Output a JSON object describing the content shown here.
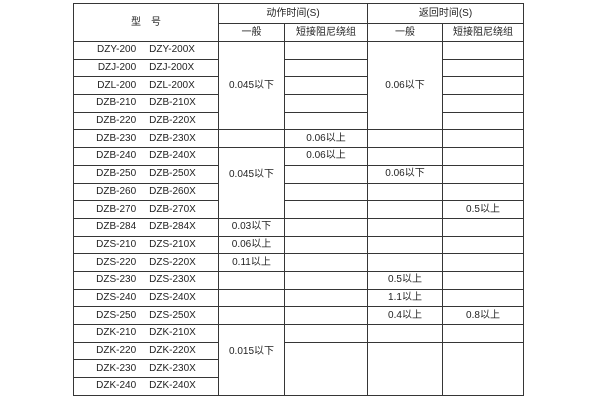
{
  "window": {
    "background": "#ffffff",
    "border_color": "#363636",
    "text_color": "#1f1f1f"
  },
  "table": {
    "header": {
      "model": "型　号",
      "action_time": "动作时间(S)",
      "return_time": "返回时间(S)",
      "action_general": "一般",
      "action_damping": "短接阻尼绕组",
      "return_general": "一般",
      "return_damping": "短接阻尼绕组"
    },
    "rows": [
      {
        "m1": "DZY-200",
        "m2": "DZY-200X",
        "ag": {
          "span": 5,
          "text": "0.045以下",
          "anchor": 2
        },
        "ad": "",
        "rg": {
          "span": 5,
          "text": "0.06以下",
          "anchor": 2
        },
        "rd": ""
      },
      {
        "m1": "DZJ-200",
        "m2": "DZJ-200X",
        "ad": "",
        "rd": ""
      },
      {
        "m1": "DZL-200",
        "m2": "DZL-200X",
        "ad": "",
        "rd": ""
      },
      {
        "m1": "DZB-210",
        "m2": "DZB-210X",
        "ad": "",
        "rd": ""
      },
      {
        "m1": "DZB-220",
        "m2": "DZB-220X",
        "ad": "",
        "rd": ""
      },
      {
        "m1": "DZB-230",
        "m2": "DZB-230X",
        "ag": "",
        "ad": "0.06以上",
        "rg": "",
        "rd": ""
      },
      {
        "m1": "DZB-240",
        "m2": "DZB-240X",
        "ag": {
          "span": 4,
          "text": "0.045以下",
          "anchor": 1
        },
        "ad": "0.06以上",
        "rg": "",
        "rd": ""
      },
      {
        "m1": "DZB-250",
        "m2": "DZB-250X",
        "ad": "",
        "rg": "0.06以下",
        "rd": ""
      },
      {
        "m1": "DZB-260",
        "m2": "DZB-260X",
        "ad": "",
        "rg": "",
        "rd": ""
      },
      {
        "m1": "DZB-270",
        "m2": "DZB-270X",
        "ad": "",
        "rg": "",
        "rd": "0.5以上"
      },
      {
        "m1": "DZB-284",
        "m2": "DZB-284X",
        "ag": "0.03以下",
        "ad": "",
        "rg": "",
        "rd": ""
      },
      {
        "m1": "DZS-210",
        "m2": "DZS-210X",
        "ag": "0.06以上",
        "ad": "",
        "rg": "",
        "rd": ""
      },
      {
        "m1": "DZS-220",
        "m2": "DZS-220X",
        "ag": "0.11以上",
        "ad": "",
        "rg": "",
        "rd": ""
      },
      {
        "m1": "DZS-230",
        "m2": "DZS-230X",
        "ag": "",
        "ad": "",
        "rg": "0.5以上",
        "rd": ""
      },
      {
        "m1": "DZS-240",
        "m2": "DZS-240X",
        "ag": "",
        "ad": "",
        "rg": "1.1以上",
        "rd": ""
      },
      {
        "m1": "DZS-250",
        "m2": "DZS-250X",
        "ag": "",
        "ad": "",
        "rg": "0.4以上",
        "rd": "0.8以上"
      },
      {
        "m1": "DZK-210",
        "m2": "DZK-210X",
        "ag": {
          "span": 4,
          "text": "0.015以下",
          "anchor": 1
        },
        "ad": "",
        "rg": "",
        "rd": ""
      },
      {
        "m1": "DZK-220",
        "m2": "DZK-220X",
        "ad": {
          "span": 3,
          "text": "",
          "anchor": 0
        },
        "rg": {
          "span": 3,
          "text": "",
          "anchor": 0
        },
        "rd": {
          "span": 3,
          "text": "",
          "anchor": 0
        }
      },
      {
        "m1": "DZK-230",
        "m2": "DZK-230X"
      },
      {
        "m1": "DZK-240",
        "m2": "DZK-240X"
      }
    ]
  }
}
